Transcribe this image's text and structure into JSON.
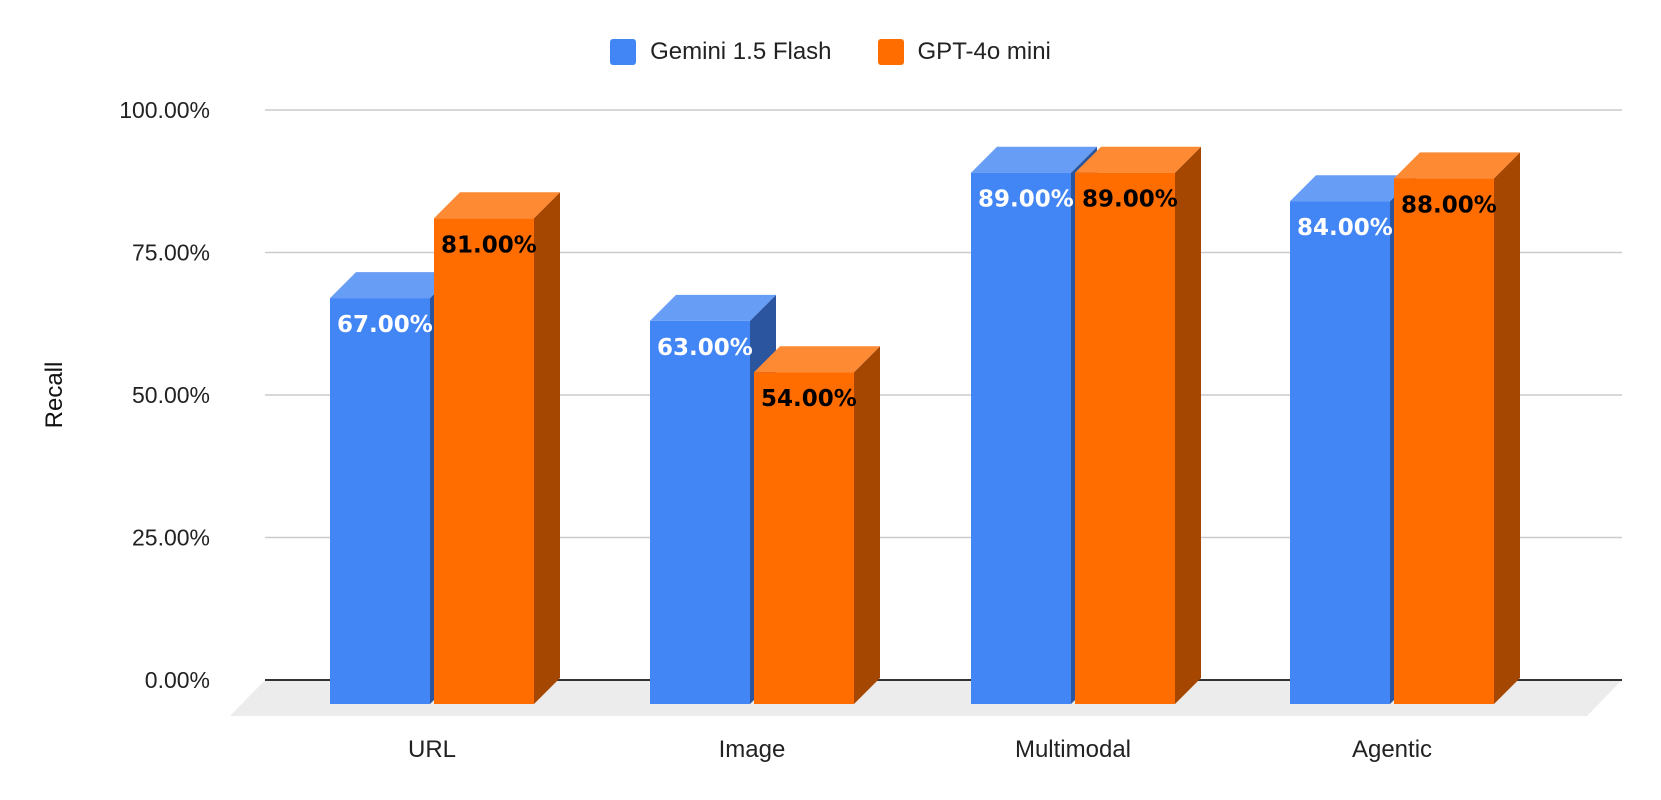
{
  "chart_data": {
    "type": "bar",
    "style": "3d-column",
    "categories": [
      "URL",
      "Image",
      "Multimodal",
      "Agentic"
    ],
    "series": [
      {
        "name": "Gemini 1.5 Flash",
        "values": [
          67,
          63,
          89,
          84
        ],
        "labels": [
          "67.00%",
          "63.00%",
          "89.00%",
          "84.00%"
        ],
        "color": "#4285f4",
        "label_color": "#ffffff"
      },
      {
        "name": "GPT-4o mini",
        "values": [
          81,
          54,
          89,
          88
        ],
        "labels": [
          "81.00%",
          "54.00%",
          "89.00%",
          "88.00%"
        ],
        "color": "#ff6d01",
        "label_color": "#000000"
      }
    ],
    "ylabel": "Recall",
    "ylim": [
      0,
      100
    ],
    "yticks": [
      "0.00%",
      "25.00%",
      "50.00%",
      "75.00%",
      "100.00%"
    ],
    "legend_position": "top-center",
    "grid": true
  }
}
